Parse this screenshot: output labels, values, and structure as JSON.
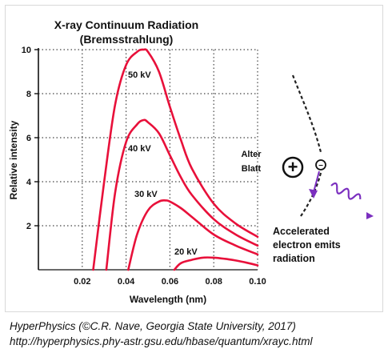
{
  "chart_data": {
    "type": "line",
    "title": "X-ray Continuum Radiation",
    "subtitle": "(Bremsstrahlung)",
    "xlabel": "Wavelength (nm)",
    "ylabel": "Relative intensity",
    "xlim": [
      0.0,
      0.1
    ],
    "ylim": [
      0,
      10
    ],
    "x_ticks": [
      "0.02",
      "0.04",
      "0.06",
      "0.08",
      "0.10"
    ],
    "x_tick_values": [
      0.02,
      0.04,
      0.06,
      0.08,
      0.1
    ],
    "y_ticks": [
      "2",
      "4",
      "6",
      "8",
      "10"
    ],
    "y_tick_values": [
      2,
      4,
      6,
      8,
      10
    ],
    "grid": "dotted",
    "line_color": "#e8103a",
    "series": [
      {
        "name": "50 kV",
        "x": [
          0.025,
          0.03,
          0.035,
          0.04,
          0.045,
          0.048,
          0.05,
          0.055,
          0.06,
          0.065,
          0.07,
          0.08,
          0.09,
          0.1
        ],
        "values": [
          0,
          4.0,
          7.5,
          9.3,
          9.9,
          10.0,
          9.9,
          9.0,
          7.4,
          5.9,
          4.6,
          3.0,
          2.1,
          1.5
        ]
      },
      {
        "name": "40 kV",
        "x": [
          0.031,
          0.035,
          0.04,
          0.045,
          0.048,
          0.05,
          0.055,
          0.06,
          0.065,
          0.07,
          0.08,
          0.09,
          0.1
        ],
        "values": [
          0,
          3.5,
          5.8,
          6.6,
          6.8,
          6.7,
          6.2,
          5.2,
          4.2,
          3.4,
          2.3,
          1.6,
          1.1
        ]
      },
      {
        "name": "30 kV",
        "x": [
          0.041,
          0.045,
          0.05,
          0.055,
          0.058,
          0.06,
          0.065,
          0.07,
          0.08,
          0.09,
          0.1
        ],
        "values": [
          0,
          1.6,
          2.7,
          3.1,
          3.15,
          3.1,
          2.8,
          2.4,
          1.6,
          1.1,
          0.7
        ]
      },
      {
        "name": "20 kV",
        "x": [
          0.062,
          0.065,
          0.07,
          0.075,
          0.08,
          0.085,
          0.09,
          0.095,
          0.1
        ],
        "values": [
          0,
          0.3,
          0.45,
          0.55,
          0.55,
          0.5,
          0.42,
          0.32,
          0.2
        ]
      }
    ]
  },
  "annotations": {
    "alter_blatt": [
      "Alter",
      "Blatt"
    ],
    "nucleus_symbol": "+",
    "electron_symbol": "−",
    "caption_right": [
      "Accelerated",
      "electron emits",
      "radiation"
    ],
    "photon_color": "#7b2fbf",
    "path_color": "#222222"
  },
  "footer": {
    "line1": "HyperPhysics (©C.R. Nave, Georgia State University, 2017)",
    "line2": "http://hyperphysics.phy-astr.gsu.edu/hbase/quantum/xrayc.html"
  }
}
